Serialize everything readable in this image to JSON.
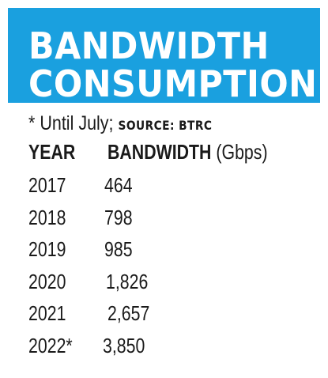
{
  "chart_data": {
    "type": "table",
    "title_lines": [
      "BANDWIDTH",
      "CONSUMPTION"
    ],
    "note": "* Until July;",
    "source": "SOURCE: BTRC",
    "columns": [
      "YEAR",
      "BANDWIDTH",
      "(Gbps)"
    ],
    "rows": [
      {
        "year": "2017",
        "value": "464"
      },
      {
        "year": "2018",
        "value": "798"
      },
      {
        "year": "2019",
        "value": "985"
      },
      {
        "year": "2020",
        "value": "1,826"
      },
      {
        "year": "2021",
        "value": "2,657"
      },
      {
        "year": "2022*",
        "value": "3,850"
      }
    ],
    "header_color": "#1aa0df"
  }
}
